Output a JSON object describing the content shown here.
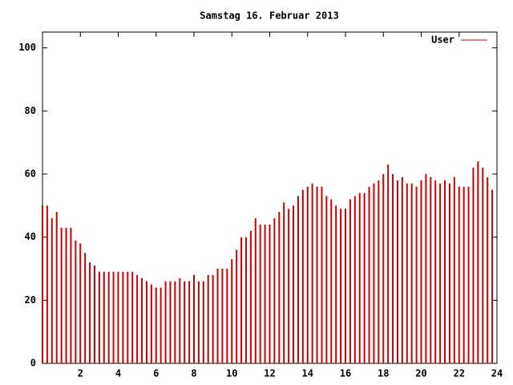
{
  "chart_data": {
    "type": "impulse",
    "title": "Samstag 16. Februar 2013",
    "series": [
      {
        "name": "User",
        "color": "#cc0000",
        "x": [
          0,
          0.25,
          0.5,
          0.75,
          1,
          1.25,
          1.5,
          1.75,
          2,
          2.25,
          2.5,
          2.75,
          3,
          3.25,
          3.5,
          3.75,
          4,
          4.25,
          4.5,
          4.75,
          5,
          5.25,
          5.5,
          5.75,
          6,
          6.25,
          6.5,
          6.75,
          7,
          7.25,
          7.5,
          7.75,
          8,
          8.25,
          8.5,
          8.75,
          9,
          9.25,
          9.5,
          9.75,
          10,
          10.25,
          10.5,
          10.75,
          11,
          11.25,
          11.5,
          11.75,
          12,
          12.25,
          12.5,
          12.75,
          13,
          13.25,
          13.5,
          13.75,
          14,
          14.25,
          14.5,
          14.75,
          15,
          15.25,
          15.5,
          15.75,
          16,
          16.25,
          16.5,
          16.75,
          17,
          17.25,
          17.5,
          17.75,
          18,
          18.25,
          18.5,
          18.75,
          19,
          19.25,
          19.5,
          19.75,
          20,
          20.25,
          20.5,
          20.75,
          21,
          21.25,
          21.5,
          21.75,
          22,
          22.25,
          22.5,
          22.75,
          23,
          23.25,
          23.5,
          23.75
        ],
        "values": [
          50,
          50,
          46,
          48,
          43,
          43,
          43,
          39,
          38,
          35,
          32,
          31,
          29,
          29,
          29,
          29,
          29,
          29,
          29,
          29,
          28,
          27,
          26,
          25,
          24,
          24,
          26,
          26,
          26,
          27,
          26,
          26,
          28,
          26,
          26,
          28,
          28,
          30,
          30,
          30,
          33,
          36,
          40,
          40,
          42,
          46,
          44,
          44,
          44,
          46,
          48,
          51,
          49,
          50,
          53,
          55,
          56,
          57,
          56,
          56,
          53,
          52,
          50,
          49,
          49,
          52,
          53,
          54,
          54,
          56,
          57,
          58,
          60,
          63,
          60,
          58,
          59,
          57,
          57,
          56,
          58,
          60,
          59,
          58,
          57,
          58,
          57,
          59,
          56,
          56,
          56,
          62,
          64,
          62,
          59,
          55
        ]
      }
    ],
    "xlim": [
      0,
      24
    ],
    "xticks": [
      2,
      4,
      6,
      8,
      10,
      12,
      14,
      16,
      18,
      20,
      22,
      24
    ],
    "ylim": [
      0,
      105
    ],
    "yticks": [
      0,
      20,
      40,
      60,
      80,
      100
    ],
    "legend": "top-right"
  }
}
